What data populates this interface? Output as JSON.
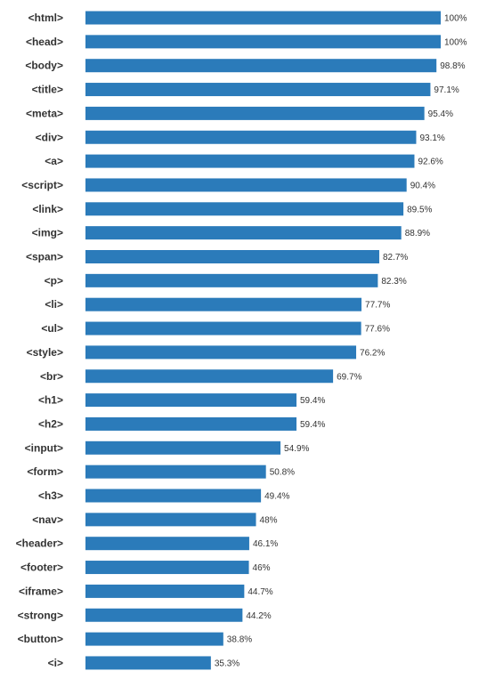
{
  "chart_data": {
    "type": "bar",
    "orientation": "horizontal",
    "value_suffix": "%",
    "xlim": [
      0,
      100
    ],
    "grid": false,
    "bar_color": "#2b7bba",
    "categories": [
      "<html>",
      "<head>",
      "<body>",
      "<title>",
      "<meta>",
      "<div>",
      "<a>",
      "<script>",
      "<link>",
      "<img>",
      "<span>",
      "<p>",
      "<li>",
      "<ul>",
      "<style>",
      "<br>",
      "<h1>",
      "<h2>",
      "<input>",
      "<form>",
      "<h3>",
      "<nav>",
      "<header>",
      "<footer>",
      "<iframe>",
      "<strong>",
      "<button>",
      "<i>"
    ],
    "values": [
      100,
      100,
      98.8,
      97.1,
      95.4,
      93.1,
      92.6,
      90.4,
      89.5,
      88.9,
      82.7,
      82.3,
      77.7,
      77.6,
      76.2,
      69.7,
      59.4,
      59.4,
      54.9,
      50.8,
      49.4,
      48,
      46.1,
      46,
      44.7,
      44.2,
      38.8,
      35.3
    ]
  }
}
